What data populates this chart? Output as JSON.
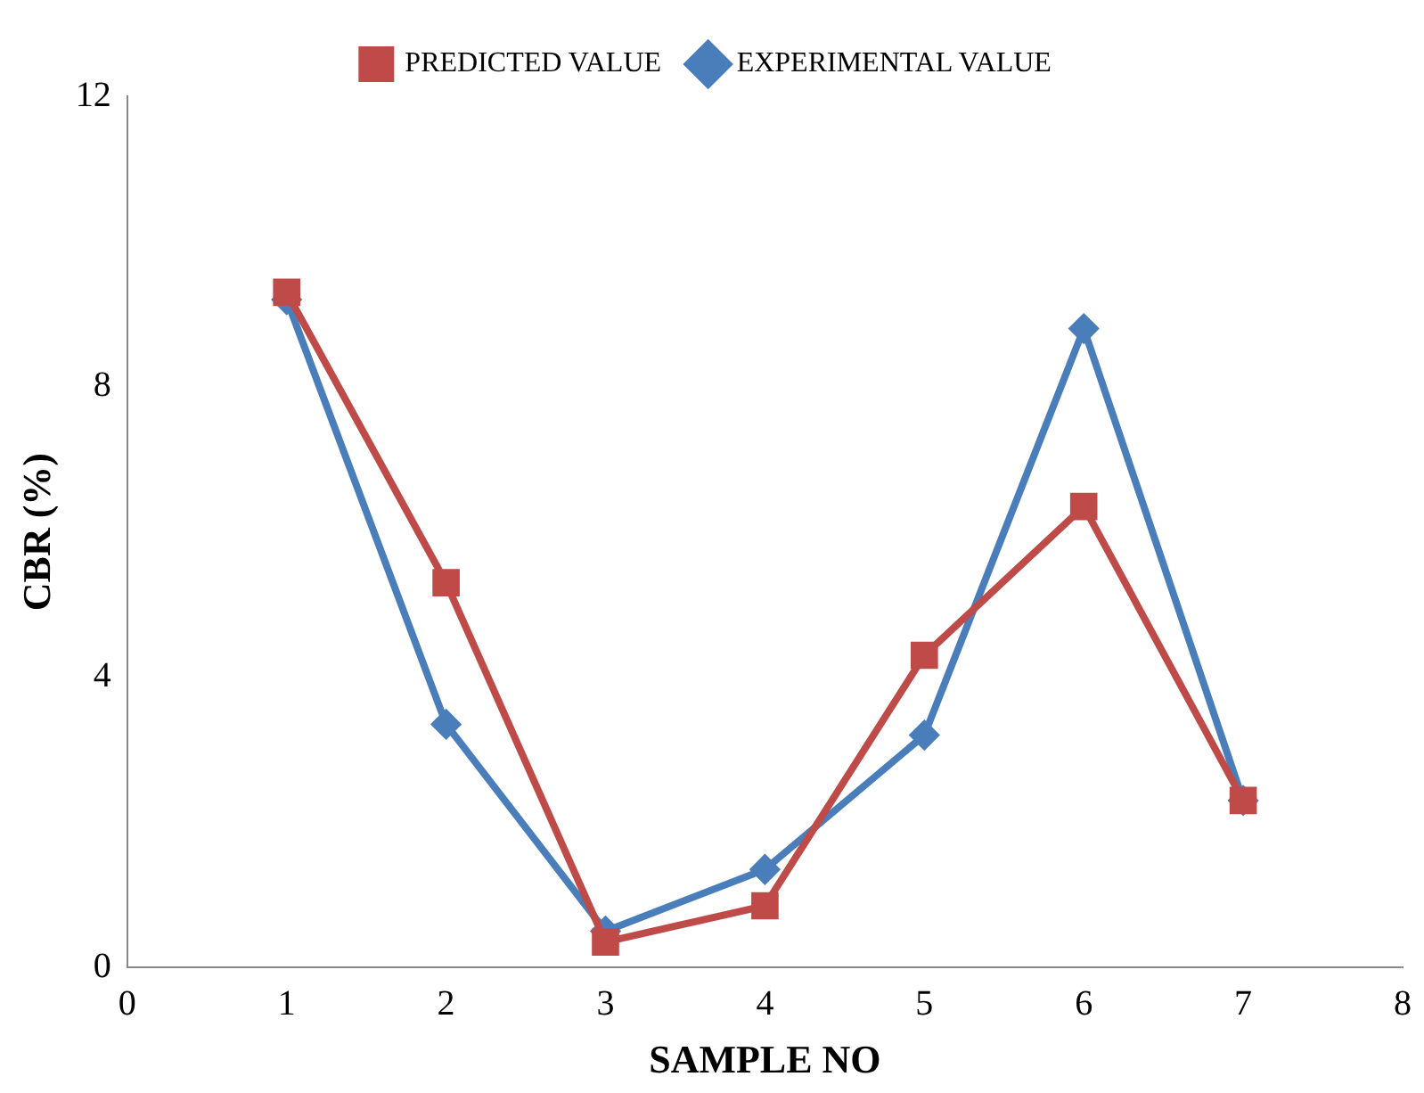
{
  "chart_data": {
    "type": "line",
    "xlabel": "SAMPLE NO",
    "ylabel": "CBR (%)",
    "x": [
      1,
      2,
      3,
      4,
      5,
      6,
      7
    ],
    "series": [
      {
        "name": "EXPERIMENTAL VALUE",
        "color": "#4a7ebb",
        "marker": "diamond",
        "values": [
          9.2,
          3.35,
          0.5,
          1.35,
          3.2,
          8.8,
          2.3
        ]
      },
      {
        "name": "PREDICTED VALUE",
        "color": "#be4b48",
        "marker": "square",
        "values": [
          9.3,
          5.3,
          0.35,
          0.85,
          4.3,
          6.35,
          2.3
        ]
      }
    ],
    "xlim": [
      0,
      8
    ],
    "xticks": [
      0,
      1,
      2,
      3,
      4,
      5,
      6,
      7,
      8
    ],
    "ylim": [
      0,
      12
    ],
    "yticks": [
      0,
      4,
      8,
      12
    ],
    "grid": false,
    "legend": "top",
    "line_style": "solid"
  }
}
